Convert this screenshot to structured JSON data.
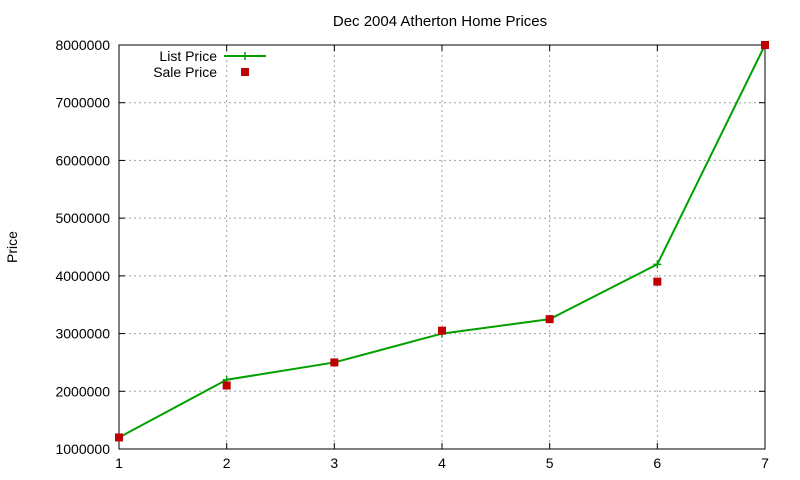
{
  "chart_data": {
    "type": "line",
    "title": "Dec 2004 Atherton Home Prices",
    "xlabel": "",
    "ylabel": "Price",
    "xlim": [
      1,
      7
    ],
    "ylim": [
      1000000,
      8000000
    ],
    "x_ticks": [
      "1",
      "2",
      "3",
      "4",
      "5",
      "6",
      "7"
    ],
    "y_ticks": [
      "1000000",
      "2000000",
      "3000000",
      "4000000",
      "5000000",
      "6000000",
      "7000000",
      "8000000"
    ],
    "grid": true,
    "legend_position": "top-left",
    "series": [
      {
        "name": "List Price",
        "style": "line+cross",
        "color": "#00a000",
        "x": [
          1,
          2,
          3,
          4,
          5,
          6,
          7
        ],
        "values": [
          1200000,
          2200000,
          2500000,
          3000000,
          3250000,
          4200000,
          8000000
        ]
      },
      {
        "name": "Sale Price",
        "style": "square-points",
        "color": "#c00000",
        "x": [
          1,
          2,
          3,
          4,
          5,
          6,
          7
        ],
        "values": [
          1200000,
          2100000,
          2500000,
          3050000,
          3250000,
          3900000,
          8000000
        ]
      }
    ]
  }
}
